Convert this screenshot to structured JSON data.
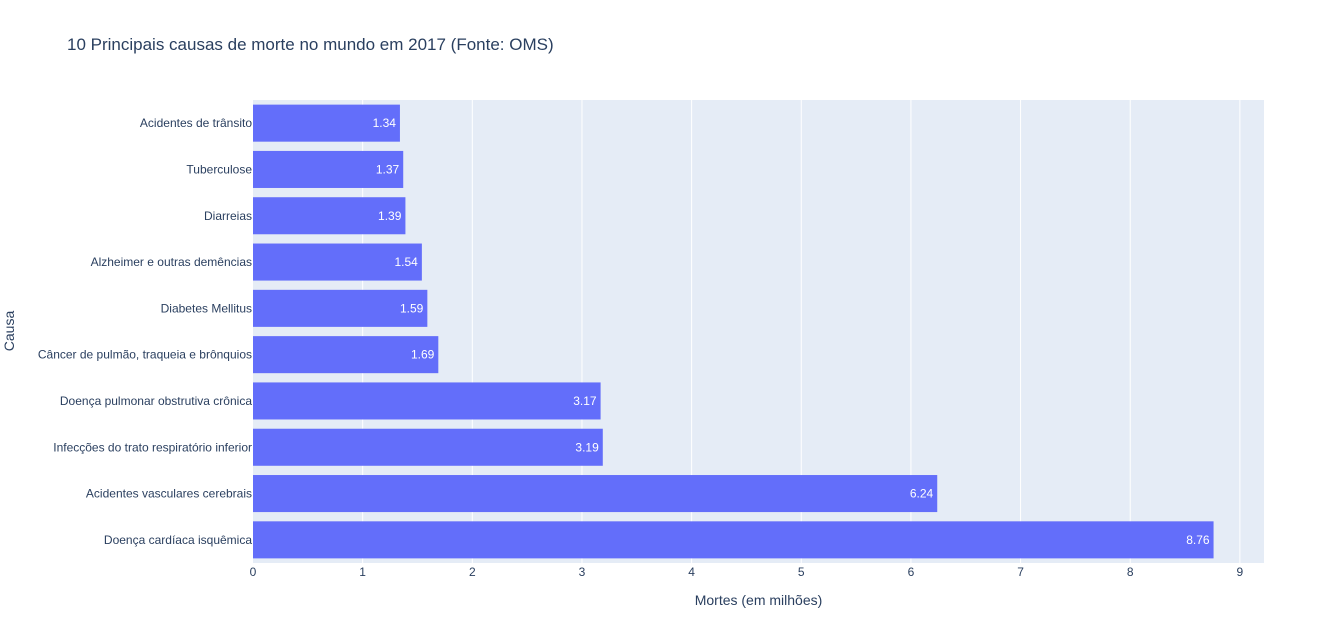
{
  "chart_data": {
    "type": "bar",
    "orientation": "horizontal",
    "title": "10 Principais causas de morte no mundo em 2017 (Fonte: OMS)",
    "xlabel": "Mortes (em milhões)",
    "ylabel": "Causa",
    "xlim": [
      0,
      9.22
    ],
    "x_ticks": [
      "0",
      "1",
      "2",
      "3",
      "4",
      "5",
      "6",
      "7",
      "8",
      "9"
    ],
    "grid": true,
    "categories": [
      "Acidentes de trânsito",
      "Tuberculose",
      "Diarreias",
      "Alzheimer e outras demências",
      "Diabetes Mellitus",
      "Câncer de pulmão, traqueia e brônquios",
      "Doença pulmonar obstrutiva crônica",
      "Infecções do trato respiratório inferior",
      "Acidentes vasculares cerebrais",
      "Doença cardíaca isquêmica"
    ],
    "values": [
      1.34,
      1.37,
      1.39,
      1.54,
      1.59,
      1.69,
      3.17,
      3.19,
      6.24,
      8.76
    ],
    "value_labels": [
      "1.34",
      "1.37",
      "1.39",
      "1.54",
      "1.59",
      "1.69",
      "3.17",
      "3.19",
      "6.24",
      "8.76"
    ],
    "colors": {
      "bar": "#636efa",
      "plot_bg": "#e5ecf6",
      "grid": "#ffffff",
      "text": "#2a3f5f"
    }
  }
}
